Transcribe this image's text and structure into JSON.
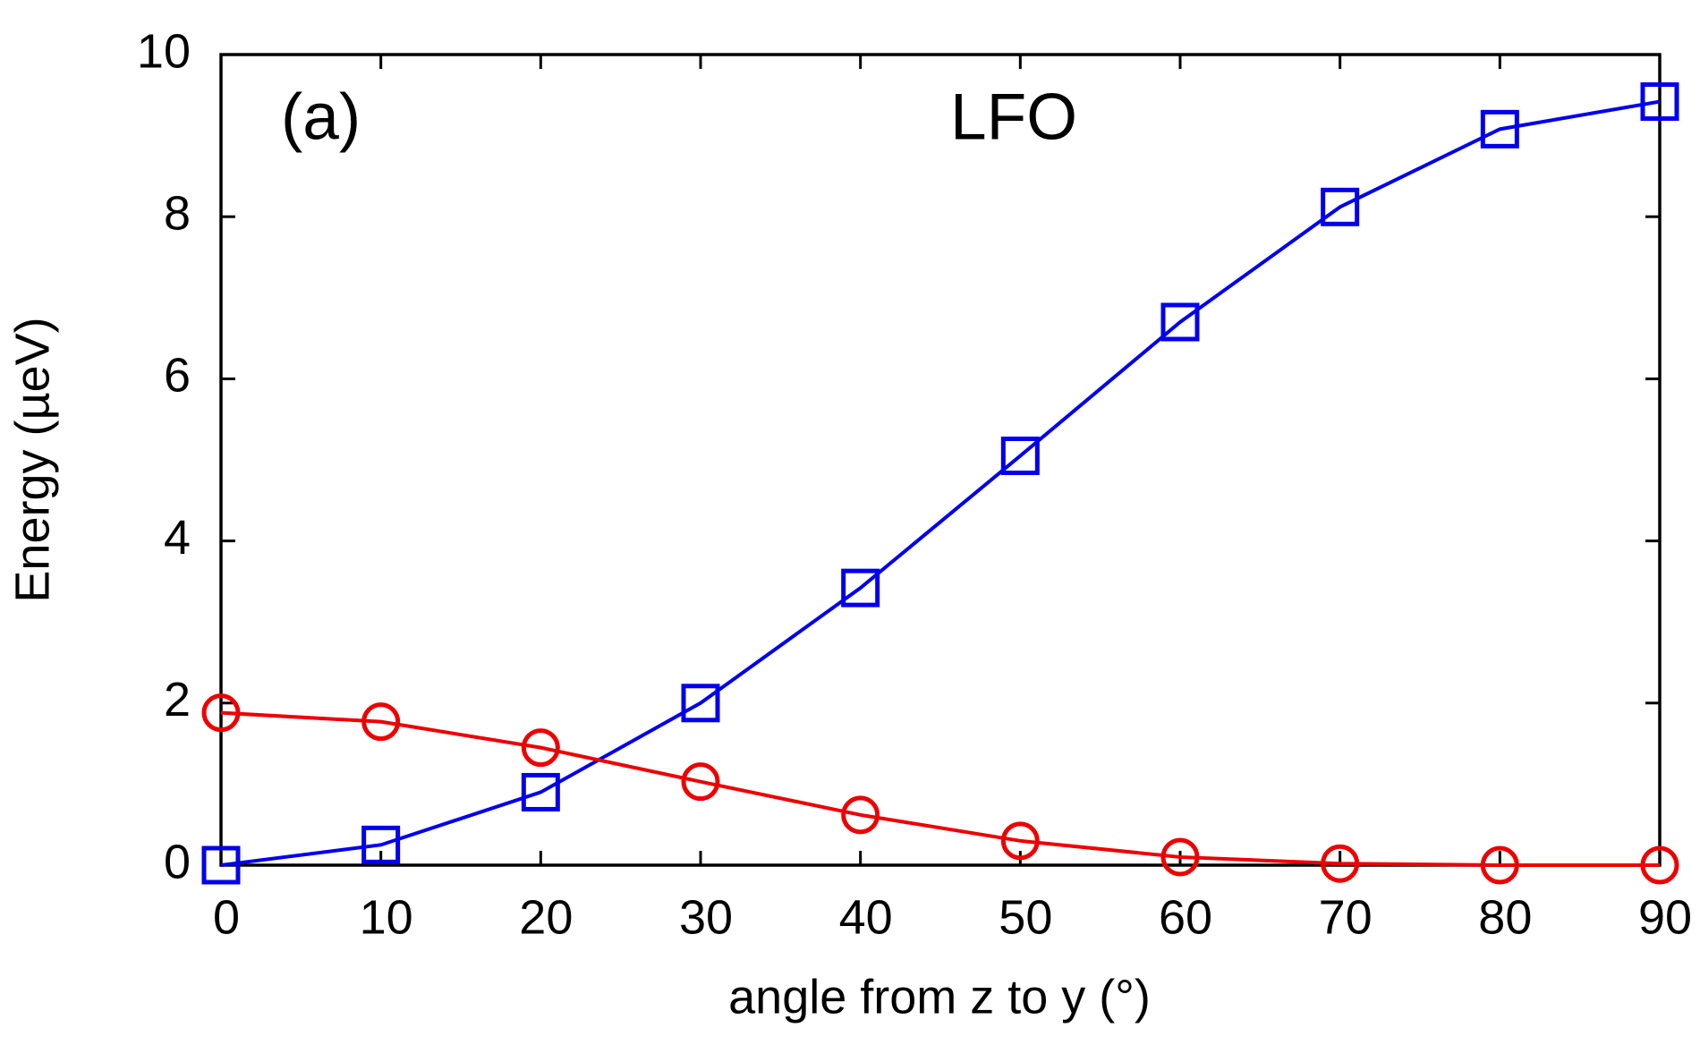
{
  "chart_data": {
    "type": "line",
    "xlabel": "angle from z to y (°)",
    "ylabel": "Energy (µeV)",
    "annotations": [
      "(a)",
      "LFO"
    ],
    "x": [
      0,
      10,
      20,
      30,
      40,
      50,
      60,
      70,
      80,
      90
    ],
    "series": [
      {
        "color": "#0000ee",
        "marker": "square",
        "values": [
          0,
          0.25,
          0.9,
          2.0,
          3.42,
          5.05,
          6.7,
          8.12,
          9.08,
          9.42
        ]
      },
      {
        "color": "#ee0000",
        "marker": "circle",
        "values": [
          1.88,
          1.77,
          1.45,
          1.03,
          0.62,
          0.3,
          0.1,
          0.02,
          0,
          0
        ]
      }
    ],
    "xlim": [
      0,
      90
    ],
    "xticks": [
      0,
      10,
      20,
      30,
      40,
      50,
      60,
      70,
      80,
      90
    ],
    "ylim": [
      0,
      10
    ],
    "yticks": [
      0,
      2,
      4,
      6,
      8,
      10
    ]
  }
}
